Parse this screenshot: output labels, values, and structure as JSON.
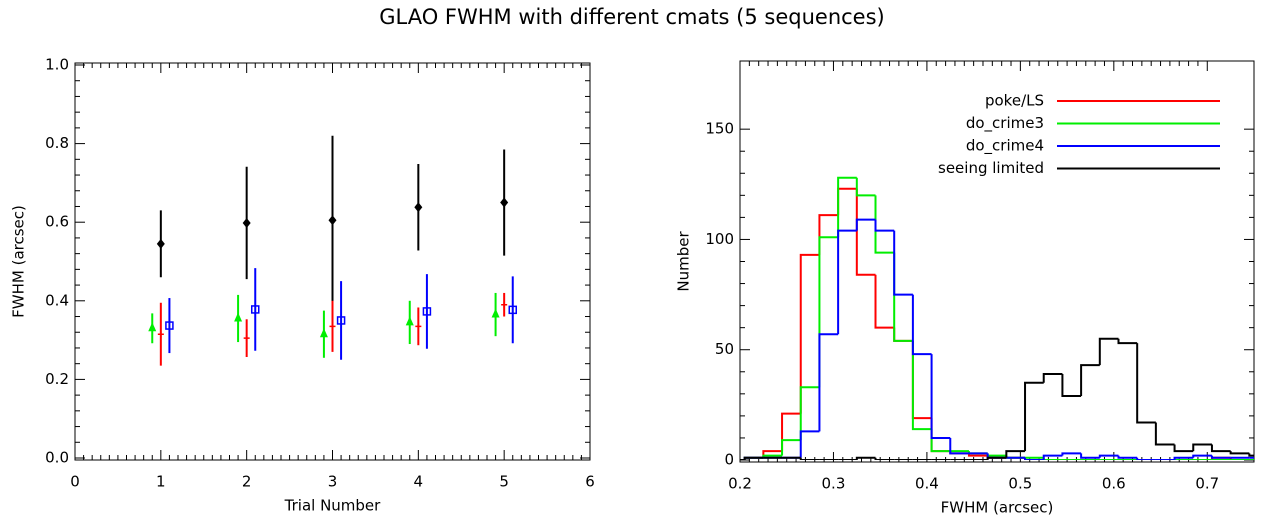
{
  "title": "GLAO FWHM with different cmats (5 sequences)",
  "chart_data": [
    {
      "type": "errorbar",
      "xlabel": "Trial Number",
      "ylabel": "FWHM (arcsec)",
      "xlim": [
        0,
        6
      ],
      "xticks": [
        0,
        1,
        2,
        3,
        4,
        5,
        6
      ],
      "ylim": [
        0,
        1
      ],
      "yticks": [
        {
          "value": 0,
          "label": "0.0"
        },
        0.2,
        0.4,
        0.6,
        0.8,
        {
          "value": 1,
          "label": "1.0"
        }
      ],
      "series": [
        {
          "color": "#000000",
          "marker": "diamond",
          "x": [
            1,
            2,
            3,
            4,
            5
          ],
          "values": [
            0.545,
            0.598,
            0.605,
            0.638,
            0.65
          ],
          "errors": [
            0.085,
            0.143,
            0.215,
            0.11,
            0.135
          ]
        },
        {
          "color": "#00ee00",
          "marker": "triangle",
          "x": [
            0.9,
            1.9,
            2.9,
            3.9,
            4.9
          ],
          "values": [
            0.33,
            0.355,
            0.315,
            0.345,
            0.365
          ],
          "errors": [
            0.038,
            0.06,
            0.06,
            0.055,
            0.055
          ]
        },
        {
          "color": "#ff0000",
          "marker": "plus",
          "x": [
            1,
            2,
            3,
            4,
            5
          ],
          "values": [
            0.315,
            0.305,
            0.335,
            0.335,
            0.39
          ],
          "errors": [
            0.08,
            0.048,
            0.065,
            0.048,
            0.03
          ]
        },
        {
          "color": "#0000ff",
          "marker": "square",
          "x": [
            1.1,
            2.1,
            3.1,
            4.1,
            5.1
          ],
          "values": [
            0.337,
            0.378,
            0.35,
            0.373,
            0.377
          ],
          "errors": [
            0.07,
            0.105,
            0.1,
            0.095,
            0.085
          ]
        }
      ]
    },
    {
      "type": "histogram",
      "xlabel": "FWHM (arcsec)",
      "ylabel": "Number",
      "xlim": [
        0.2,
        0.75
      ],
      "xticks": [
        0.2,
        0.3,
        0.4,
        0.5,
        0.6,
        0.7
      ],
      "ylim": [
        0,
        180
      ],
      "yticks": [
        0,
        50,
        100,
        150
      ],
      "legend": "upper right",
      "bins": [
        0.185,
        0.205,
        0.225,
        0.245,
        0.265,
        0.285,
        0.305,
        0.325,
        0.345,
        0.365,
        0.385,
        0.405,
        0.425,
        0.445,
        0.465,
        0.485,
        0.505,
        0.525,
        0.545,
        0.565,
        0.585,
        0.605,
        0.625,
        0.645,
        0.665,
        0.685,
        0.705,
        0.725,
        0.745,
        0.765
      ],
      "series": [
        {
          "name": "poke/LS",
          "color": "#ff0000",
          "values": [
            0,
            1,
            4,
            21,
            93,
            111,
            123,
            84,
            60,
            54,
            19,
            4,
            3,
            2,
            1,
            1,
            0,
            0,
            0,
            0,
            0,
            0,
            0,
            0,
            0,
            0,
            1,
            0,
            0
          ]
        },
        {
          "name": "do_crime3",
          "color": "#00ee00",
          "values": [
            0,
            1,
            2,
            9,
            33,
            101,
            128,
            120,
            94,
            54,
            14,
            4,
            4,
            3,
            2,
            1,
            1,
            0,
            0,
            0,
            0,
            0,
            0,
            0,
            0,
            0,
            0,
            0,
            0
          ]
        },
        {
          "name": "do_crime4",
          "color": "#0000ff",
          "values": [
            0,
            1,
            1,
            1,
            13,
            57,
            104,
            109,
            104,
            75,
            48,
            10,
            3,
            3,
            1,
            1,
            0,
            2,
            3,
            1,
            2,
            1,
            0,
            0,
            1,
            2,
            1,
            1,
            1
          ]
        },
        {
          "name": "seeing limited",
          "color": "#000000",
          "values": [
            0,
            1,
            1,
            1,
            0,
            0,
            0,
            1,
            0,
            0,
            0,
            0,
            0,
            0,
            1,
            4,
            35,
            39,
            29,
            43,
            55,
            53,
            17,
            7,
            4,
            7,
            4,
            3,
            2
          ]
        }
      ]
    }
  ]
}
